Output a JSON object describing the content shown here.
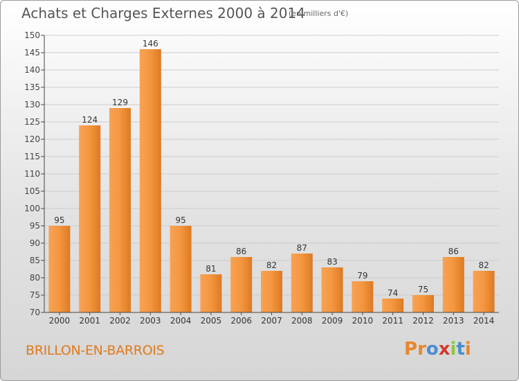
{
  "header": {
    "title": "Achats et Charges Externes 2000 à 2014",
    "subtitle": "(en milliers d'€)"
  },
  "footer": {
    "commune": "BRILLON-EN-BARROIS",
    "logo_letters": [
      "P",
      "r",
      "o",
      "x",
      "i",
      "t",
      "i"
    ],
    "logo_colors": [
      "#e8872a",
      "#e8872a",
      "#4a8ed0",
      "#d23a2a",
      "#8cc63f",
      "#4a8ed0",
      "#e8872a"
    ]
  },
  "colors": {
    "bar": "#f0923a",
    "axis": "#444444",
    "grid": "#cccccc"
  },
  "chart_data": {
    "type": "bar",
    "title": "Achats et Charges Externes 2000 à 2014",
    "subtitle": "(en milliers d'€)",
    "categories": [
      "2000",
      "2001",
      "2002",
      "2003",
      "2004",
      "2005",
      "2006",
      "2007",
      "2008",
      "2009",
      "2010",
      "2011",
      "2012",
      "2013",
      "2014"
    ],
    "values": [
      95,
      124,
      129,
      146,
      95,
      81,
      86,
      82,
      87,
      83,
      79,
      74,
      75,
      86,
      82
    ],
    "ylim": [
      70,
      150
    ],
    "yticks": [
      70,
      75,
      80,
      85,
      90,
      95,
      100,
      105,
      110,
      115,
      120,
      125,
      130,
      135,
      140,
      145,
      150
    ],
    "grid": true,
    "data_labels": true
  }
}
